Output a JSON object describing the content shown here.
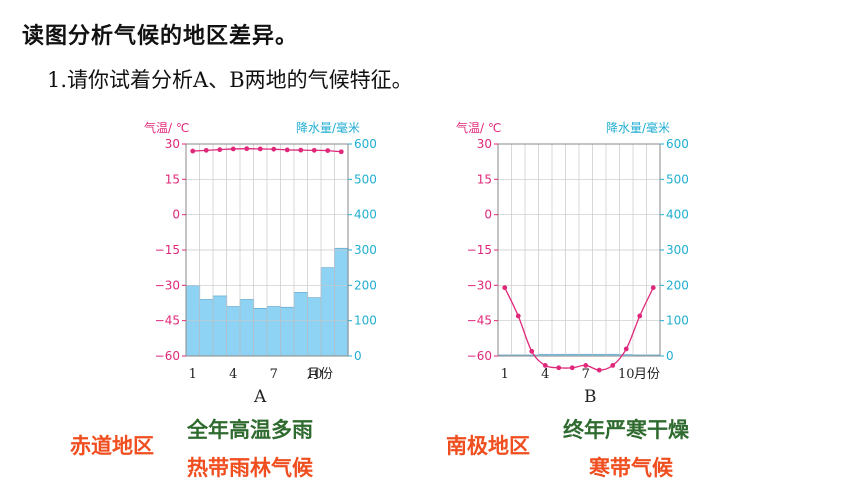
{
  "heading": "读图分析气候的地区差异。",
  "question": "1.请你试着分析A、B两地的气候特征。",
  "colors": {
    "temperature": "#e0287a",
    "precipitation_axis": "#22aed2",
    "bar_fill": "#8fd3f4",
    "region": "#f04e1f",
    "feature": "#2f6b2f"
  },
  "chart_data": [
    {
      "type": "bar+line",
      "label": "A",
      "temp_axis_title": "气温/ ℃",
      "precip_axis_title": "降水量/毫米",
      "month_unit": "月份",
      "temp_ticks": [
        30,
        15,
        0,
        -15,
        -30,
        -45,
        -60
      ],
      "precip_ticks": [
        600,
        500,
        400,
        300,
        200,
        100,
        0
      ],
      "month_ticks": [
        1,
        4,
        7,
        10
      ],
      "temp_range": [
        -60,
        30
      ],
      "precip_range": [
        0,
        600
      ],
      "months": [
        1,
        2,
        3,
        4,
        5,
        6,
        7,
        8,
        9,
        10,
        11,
        12
      ],
      "temperature": [
        27,
        27.3,
        27.6,
        27.9,
        28,
        27.9,
        27.8,
        27.5,
        27.4,
        27.3,
        27.2,
        26.7
      ],
      "precipitation": [
        200,
        160,
        170,
        140,
        160,
        135,
        140,
        138,
        180,
        165,
        250,
        305
      ]
    },
    {
      "type": "bar+line",
      "label": "B",
      "temp_axis_title": "气温/ ℃",
      "precip_axis_title": "降水量/毫米",
      "month_unit": "月份",
      "temp_ticks": [
        30,
        15,
        0,
        -15,
        -30,
        -45,
        -60
      ],
      "precip_ticks": [
        600,
        500,
        400,
        300,
        200,
        100,
        0
      ],
      "month_ticks": [
        1,
        4,
        7,
        10
      ],
      "temp_range": [
        -60,
        30
      ],
      "precip_range": [
        0,
        600
      ],
      "months": [
        1,
        2,
        3,
        4,
        5,
        6,
        7,
        8,
        9,
        10,
        11,
        12
      ],
      "temperature": [
        -31,
        -43,
        -58,
        -64,
        -65,
        -65,
        -64,
        -66,
        -64,
        -57,
        -43,
        -31
      ],
      "precipitation": [
        3,
        3,
        3,
        5,
        5,
        5,
        5,
        5,
        5,
        4,
        3,
        3
      ]
    }
  ],
  "answers": {
    "A": {
      "region": "赤道地区",
      "climate_feature": "全年高温多雨",
      "climate_type": "热带雨林气候"
    },
    "B": {
      "region": "南极地区",
      "climate_feature": "终年严寒干燥",
      "climate_type": "寒带气候"
    }
  }
}
